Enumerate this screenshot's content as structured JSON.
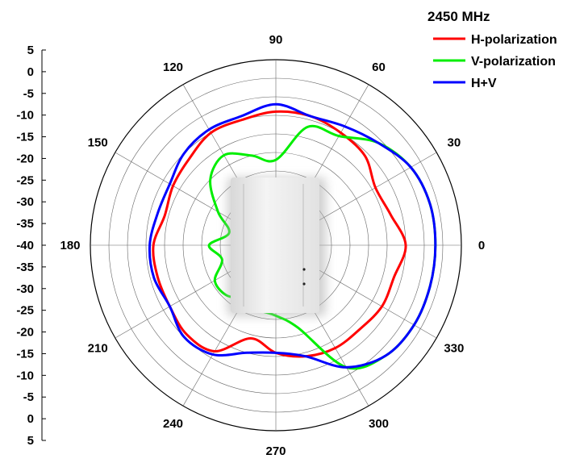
{
  "chart_data": {
    "type": "line",
    "projection": "polar",
    "title": "2450 MHz",
    "angle_unit": "degrees",
    "angle_labels": [
      "0",
      "30",
      "60",
      "90",
      "120",
      "150",
      "180",
      "210",
      "240",
      "270",
      "300",
      "330"
    ],
    "radial_range": [
      -45,
      5
    ],
    "radial_scale_labels": [
      "5",
      "0",
      "-5",
      "-10",
      "-15",
      "-20",
      "-25",
      "-30",
      "-35",
      "-40",
      "-35",
      "-30",
      "-25",
      "-20",
      "-15",
      "-10",
      "-5",
      "0",
      "5"
    ],
    "grid": true,
    "legend_position": "top-right",
    "colors": {
      "H-polarization": "#ff0000",
      "V-polarization": "#00ee00",
      "H+V": "#0000ff"
    },
    "angles": [
      0,
      15,
      30,
      45,
      60,
      75,
      90,
      105,
      120,
      135,
      150,
      165,
      180,
      195,
      210,
      225,
      240,
      255,
      270,
      285,
      300,
      315,
      330,
      345
    ],
    "series": [
      {
        "name": "H-polarization",
        "values": [
          -10,
          -13,
          -14,
          -11,
          -10,
          -9,
          -9,
          -10,
          -10,
          -12,
          -13,
          -14,
          -12,
          -12,
          -12,
          -11,
          -12,
          -19,
          -16,
          -14,
          -13,
          -13,
          -12,
          -12
        ]
      },
      {
        "name": "V-polarization",
        "values": [
          -2,
          -2,
          -3,
          -6,
          -11,
          -12,
          -22,
          -20,
          -17,
          -20,
          -27,
          -32,
          -27,
          -30,
          -26,
          -26,
          -28,
          -27,
          -26,
          -22,
          -7,
          -3,
          -2,
          -2
        ]
      },
      {
        "name": "H+V",
        "values": [
          -2,
          -2,
          -3,
          -6,
          -8,
          -9,
          -7,
          -9,
          -9,
          -10,
          -12,
          -12,
          -11,
          -11,
          -12,
          -10,
          -11,
          -15,
          -16,
          -14,
          -7,
          -3,
          -2,
          -2
        ]
      }
    ]
  }
}
